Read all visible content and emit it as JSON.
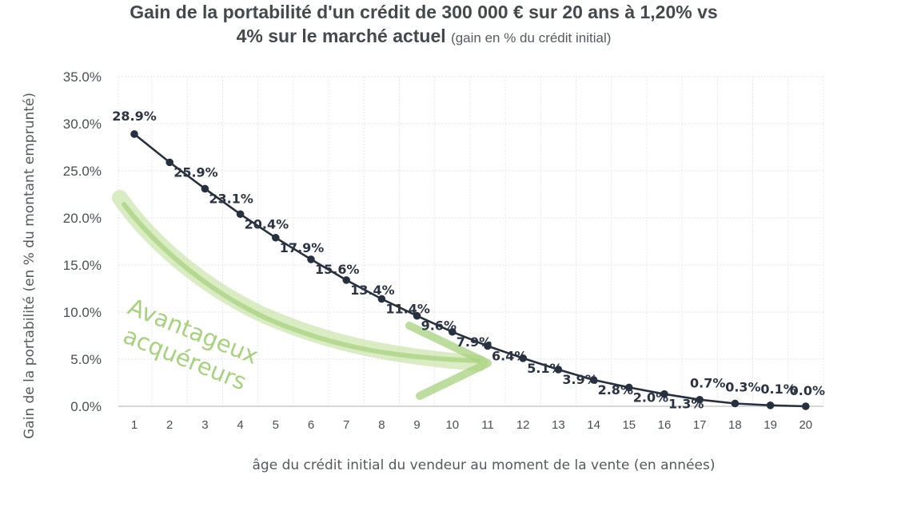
{
  "chart_data": {
    "type": "line",
    "title": "Gain de la portabilité d'un crédit de 300 000 € sur 20 ans à 1,20% vs",
    "title_line2": "4% sur le marché actuel",
    "subtitle": "(gain en % du crédit initial)",
    "xlabel": "âge du crédit initial du vendeur au moment de la vente (en années)",
    "ylabel": "Gain de la portabilité (en % du montant emprunté)",
    "x": [
      1,
      2,
      3,
      4,
      5,
      6,
      7,
      8,
      9,
      10,
      11,
      12,
      13,
      14,
      15,
      16,
      17,
      18,
      19,
      20
    ],
    "values": [
      28.9,
      25.9,
      23.1,
      20.4,
      17.9,
      15.6,
      13.4,
      11.4,
      9.6,
      7.9,
      6.4,
      5.1,
      3.9,
      2.8,
      2.0,
      1.3,
      0.7,
      0.3,
      0.1,
      0.0
    ],
    "labels": [
      "28.9%",
      "25.9%",
      "23.1%",
      "20.4%",
      "17.9%",
      "15.6%",
      "13.4%",
      "11.4%",
      "9.6%",
      "7.9%",
      "6.4%",
      "5.1%",
      "3.9%",
      "2.8%",
      "2.0%",
      "1.3%",
      "0.7%",
      "0.3%",
      "0.1%",
      "0.0%"
    ],
    "yticks": [
      0,
      5,
      10,
      15,
      20,
      25,
      30,
      35
    ],
    "ytick_labels": [
      "0.0%",
      "5.0%",
      "10.0%",
      "15.0%",
      "20.0%",
      "25.0%",
      "30.0%",
      "35.0%"
    ],
    "ylim": [
      0,
      35
    ],
    "grid": true,
    "line_color": "#26303f",
    "annotation": {
      "line1": "Avantageux",
      "line2": "acquéreurs",
      "color": "#a6d27c"
    }
  }
}
